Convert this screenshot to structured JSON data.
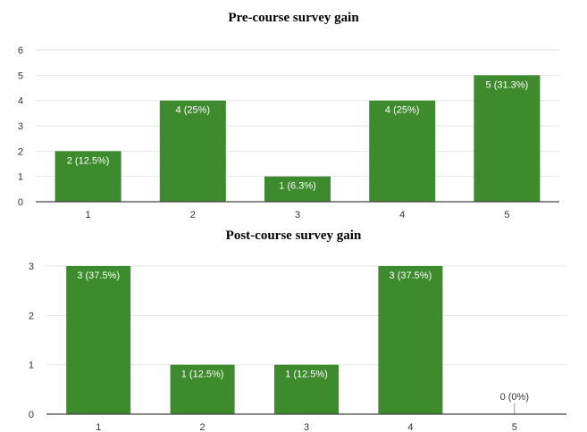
{
  "chart_data": [
    {
      "type": "bar",
      "title": "Pre-course survey gain",
      "categories": [
        "1",
        "2",
        "3",
        "4",
        "5"
      ],
      "values": [
        2,
        4,
        1,
        4,
        5
      ],
      "data_labels": [
        "2 (12.5%)",
        "4 (25%)",
        "1 (6.3%)",
        "4 (25%)",
        "5 (31.3%)"
      ],
      "ylim": [
        0,
        6
      ],
      "yticks": [
        0,
        1,
        2,
        3,
        4,
        5,
        6
      ],
      "xlabel": "",
      "ylabel": "",
      "grid": true,
      "bar_color": "#3d8b2c"
    },
    {
      "type": "bar",
      "title": "Post-course survey gain",
      "categories": [
        "1",
        "2",
        "3",
        "4",
        "5"
      ],
      "values": [
        3,
        1,
        1,
        3,
        0
      ],
      "data_labels": [
        "3 (37.5%)",
        "1 (12.5%)",
        "1 (12.5%)",
        "3 (37.5%)",
        "0 (0%)"
      ],
      "ylim": [
        0,
        3
      ],
      "yticks": [
        0,
        1,
        2,
        3
      ],
      "xlabel": "",
      "ylabel": "",
      "grid": true,
      "bar_color": "#3d8b2c"
    }
  ]
}
